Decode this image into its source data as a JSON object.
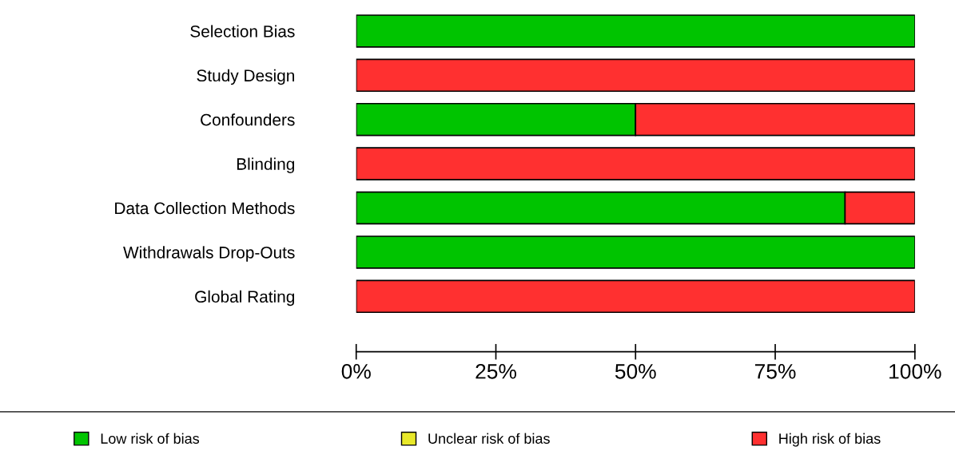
{
  "chart_data": {
    "type": "bar",
    "orientation": "horizontal",
    "stacked": true,
    "categories": [
      "Selection Bias",
      "Study Design",
      "Confounders",
      "Blinding",
      "Data Collection Methods",
      "Withdrawals Drop-Outs",
      "Global Rating"
    ],
    "series": [
      {
        "name": "Low risk of bias",
        "color": "#00c400",
        "values": [
          100,
          0,
          50,
          0,
          87.5,
          100,
          0
        ]
      },
      {
        "name": "Unclear risk of bias",
        "color": "#e8e82a",
        "values": [
          0,
          0,
          0,
          0,
          0,
          0,
          0
        ]
      },
      {
        "name": "High risk of bias",
        "color": "#ff3030",
        "values": [
          0,
          100,
          50,
          100,
          12.5,
          0,
          100
        ]
      }
    ],
    "xlim": [
      0,
      100
    ],
    "xticks": [
      {
        "value": 0,
        "label": "0%"
      },
      {
        "value": 25,
        "label": "25%"
      },
      {
        "value": 50,
        "label": "50%"
      },
      {
        "value": 75,
        "label": "75%"
      },
      {
        "value": 100,
        "label": "100%"
      }
    ],
    "legend": "bottom",
    "grid": false
  }
}
